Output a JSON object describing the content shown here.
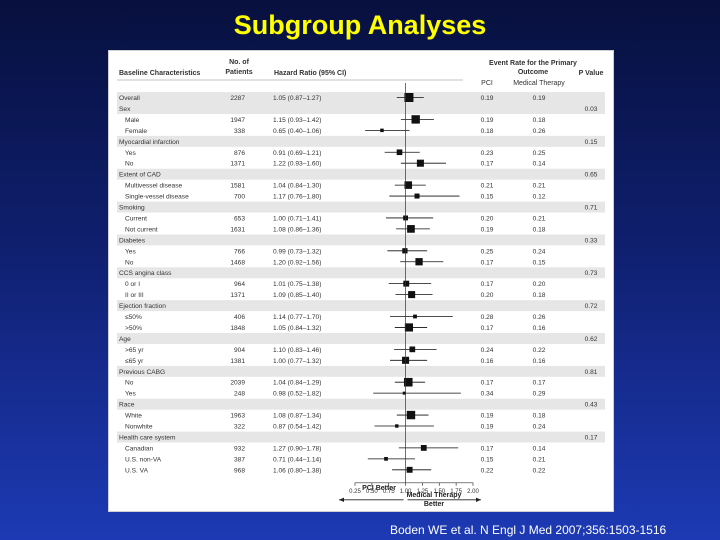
{
  "slide": {
    "title": "Subgroup Analyses",
    "citation": "Boden WE et al. N Engl J Med 2007;356:1503-1516"
  },
  "headers": {
    "baseline": "Baseline Characteristics",
    "patients": [
      "No. of",
      "Patients"
    ],
    "hazard": "Hazard Ratio (95% CI)",
    "event_rate": [
      "Event Rate for the Primary",
      "Outcome"
    ],
    "pci": "PCI",
    "medical": "Medical Therapy",
    "pvalue": "P Value"
  },
  "axis": {
    "ticks": [
      "0.25",
      "0.50",
      "0.75",
      "1.00",
      "1.25",
      "1.50",
      "1.75",
      "2.00"
    ],
    "left_label": "PCI Better",
    "right_label": [
      "Medical Therapy",
      "Better"
    ]
  },
  "chart_data": {
    "type": "forest",
    "xlim": [
      0.25,
      2.0
    ],
    "reference_line": 1.0,
    "rows": [
      {
        "label": "Overall",
        "indent": false,
        "n": "2287",
        "hr_text": "1.05 (0.87–1.27)",
        "hr": 1.05,
        "lo": 0.87,
        "hi": 1.27,
        "pci": "0.19",
        "med": "0.19",
        "p": "",
        "shaded": true
      },
      {
        "label": "Sex",
        "indent": false,
        "n": "",
        "hr_text": "",
        "hr": null,
        "lo": null,
        "hi": null,
        "pci": "",
        "med": "",
        "p": "0.03",
        "shaded": true
      },
      {
        "label": "Male",
        "indent": true,
        "n": "1947",
        "hr_text": "1.15 (0.93–1.42)",
        "hr": 1.15,
        "lo": 0.93,
        "hi": 1.42,
        "pci": "0.19",
        "med": "0.18",
        "p": "",
        "shaded": false
      },
      {
        "label": "Female",
        "indent": true,
        "n": "338",
        "hr_text": "0.65 (0.40–1.06)",
        "hr": 0.65,
        "lo": 0.4,
        "hi": 1.06,
        "pci": "0.18",
        "med": "0.26",
        "p": "",
        "shaded": false
      },
      {
        "label": "Myocardial infarction",
        "indent": false,
        "n": "",
        "hr_text": "",
        "hr": null,
        "lo": null,
        "hi": null,
        "pci": "",
        "med": "",
        "p": "0.15",
        "shaded": true
      },
      {
        "label": "Yes",
        "indent": true,
        "n": "876",
        "hr_text": "0.91 (0.69–1.21)",
        "hr": 0.91,
        "lo": 0.69,
        "hi": 1.21,
        "pci": "0.23",
        "med": "0.25",
        "p": "",
        "shaded": false
      },
      {
        "label": "No",
        "indent": true,
        "n": "1371",
        "hr_text": "1.22 (0.93–1.60)",
        "hr": 1.22,
        "lo": 0.93,
        "hi": 1.6,
        "pci": "0.17",
        "med": "0.14",
        "p": "",
        "shaded": false
      },
      {
        "label": "Extent of CAD",
        "indent": false,
        "n": "",
        "hr_text": "",
        "hr": null,
        "lo": null,
        "hi": null,
        "pci": "",
        "med": "",
        "p": "0.65",
        "shaded": true
      },
      {
        "label": "Multivessel disease",
        "indent": true,
        "n": "1581",
        "hr_text": "1.04 (0.84–1.30)",
        "hr": 1.04,
        "lo": 0.84,
        "hi": 1.3,
        "pci": "0.21",
        "med": "0.21",
        "p": "",
        "shaded": false
      },
      {
        "label": "Single-vessel disease",
        "indent": true,
        "n": "700",
        "hr_text": "1.17 (0.76–1.80)",
        "hr": 1.17,
        "lo": 0.76,
        "hi": 1.8,
        "pci": "0.15",
        "med": "0.12",
        "p": "",
        "shaded": false
      },
      {
        "label": "Smoking",
        "indent": false,
        "n": "",
        "hr_text": "",
        "hr": null,
        "lo": null,
        "hi": null,
        "pci": "",
        "med": "",
        "p": "0.71",
        "shaded": true
      },
      {
        "label": "Current",
        "indent": true,
        "n": "653",
        "hr_text": "1.00 (0.71–1.41)",
        "hr": 1.0,
        "lo": 0.71,
        "hi": 1.41,
        "pci": "0.20",
        "med": "0.21",
        "p": "",
        "shaded": false
      },
      {
        "label": "Not current",
        "indent": true,
        "n": "1631",
        "hr_text": "1.08 (0.86–1.36)",
        "hr": 1.08,
        "lo": 0.86,
        "hi": 1.36,
        "pci": "0.19",
        "med": "0.18",
        "p": "",
        "shaded": false
      },
      {
        "label": "Diabetes",
        "indent": false,
        "n": "",
        "hr_text": "",
        "hr": null,
        "lo": null,
        "hi": null,
        "pci": "",
        "med": "",
        "p": "0.33",
        "shaded": true
      },
      {
        "label": "Yes",
        "indent": true,
        "n": "766",
        "hr_text": "0.99 (0.73–1.32)",
        "hr": 0.99,
        "lo": 0.73,
        "hi": 1.32,
        "pci": "0.25",
        "med": "0.24",
        "p": "",
        "shaded": false
      },
      {
        "label": "No",
        "indent": true,
        "n": "1468",
        "hr_text": "1.20 (0.92–1.56)",
        "hr": 1.2,
        "lo": 0.92,
        "hi": 1.56,
        "pci": "0.17",
        "med": "0.15",
        "p": "",
        "shaded": false
      },
      {
        "label": "CCS angina class",
        "indent": false,
        "n": "",
        "hr_text": "",
        "hr": null,
        "lo": null,
        "hi": null,
        "pci": "",
        "med": "",
        "p": "0.73",
        "shaded": true
      },
      {
        "label": "0 or I",
        "indent": true,
        "n": "964",
        "hr_text": "1.01 (0.75–1.38)",
        "hr": 1.01,
        "lo": 0.75,
        "hi": 1.38,
        "pci": "0.17",
        "med": "0.20",
        "p": "",
        "shaded": false
      },
      {
        "label": "II or III",
        "indent": true,
        "n": "1371",
        "hr_text": "1.09 (0.85–1.40)",
        "hr": 1.09,
        "lo": 0.85,
        "hi": 1.4,
        "pci": "0.20",
        "med": "0.18",
        "p": "",
        "shaded": false
      },
      {
        "label": "Ejection fraction",
        "indent": false,
        "n": "",
        "hr_text": "",
        "hr": null,
        "lo": null,
        "hi": null,
        "pci": "",
        "med": "",
        "p": "0.72",
        "shaded": true
      },
      {
        "label": "≤50%",
        "indent": true,
        "n": "406",
        "hr_text": "1.14 (0.77–1.70)",
        "hr": 1.14,
        "lo": 0.77,
        "hi": 1.7,
        "pci": "0.28",
        "med": "0.26",
        "p": "",
        "shaded": false
      },
      {
        "label": ">50%",
        "indent": true,
        "n": "1848",
        "hr_text": "1.05 (0.84–1.32)",
        "hr": 1.05,
        "lo": 0.84,
        "hi": 1.32,
        "pci": "0.17",
        "med": "0.16",
        "p": "",
        "shaded": false
      },
      {
        "label": "Age",
        "indent": false,
        "n": "",
        "hr_text": "",
        "hr": null,
        "lo": null,
        "hi": null,
        "pci": "",
        "med": "",
        "p": "0.62",
        "shaded": true
      },
      {
        "label": ">65 yr",
        "indent": true,
        "n": "904",
        "hr_text": "1.10 (0.83–1.46)",
        "hr": 1.1,
        "lo": 0.83,
        "hi": 1.46,
        "pci": "0.24",
        "med": "0.22",
        "p": "",
        "shaded": false
      },
      {
        "label": "≤65 yr",
        "indent": true,
        "n": "1381",
        "hr_text": "1.00 (0.77–1.32)",
        "hr": 1.0,
        "lo": 0.77,
        "hi": 1.32,
        "pci": "0.16",
        "med": "0.16",
        "p": "",
        "shaded": false
      },
      {
        "label": "Previous CABG",
        "indent": false,
        "n": "",
        "hr_text": "",
        "hr": null,
        "lo": null,
        "hi": null,
        "pci": "",
        "med": "",
        "p": "0.81",
        "shaded": true
      },
      {
        "label": "No",
        "indent": true,
        "n": "2039",
        "hr_text": "1.04 (0.84–1.29)",
        "hr": 1.04,
        "lo": 0.84,
        "hi": 1.29,
        "pci": "0.17",
        "med": "0.17",
        "p": "",
        "shaded": false
      },
      {
        "label": "Yes",
        "indent": true,
        "n": "248",
        "hr_text": "0.98 (0.52–1.82)",
        "hr": 0.98,
        "lo": 0.52,
        "hi": 1.82,
        "pci": "0.34",
        "med": "0.29",
        "p": "",
        "shaded": false
      },
      {
        "label": "Race",
        "indent": false,
        "n": "",
        "hr_text": "",
        "hr": null,
        "lo": null,
        "hi": null,
        "pci": "",
        "med": "",
        "p": "0.43",
        "shaded": true
      },
      {
        "label": "White",
        "indent": true,
        "n": "1963",
        "hr_text": "1.08 (0.87–1.34)",
        "hr": 1.08,
        "lo": 0.87,
        "hi": 1.34,
        "pci": "0.19",
        "med": "0.18",
        "p": "",
        "shaded": false
      },
      {
        "label": "Nonwhite",
        "indent": true,
        "n": "322",
        "hr_text": "0.87 (0.54–1.42)",
        "hr": 0.87,
        "lo": 0.54,
        "hi": 1.42,
        "pci": "0.19",
        "med": "0.24",
        "p": "",
        "shaded": false
      },
      {
        "label": "Health care system",
        "indent": false,
        "n": "",
        "hr_text": "",
        "hr": null,
        "lo": null,
        "hi": null,
        "pci": "",
        "med": "",
        "p": "0.17",
        "shaded": true
      },
      {
        "label": "Canadian",
        "indent": true,
        "n": "932",
        "hr_text": "1.27 (0.90–1.78)",
        "hr": 1.27,
        "lo": 0.9,
        "hi": 1.78,
        "pci": "0.17",
        "med": "0.14",
        "p": "",
        "shaded": false
      },
      {
        "label": "U.S. non-VA",
        "indent": true,
        "n": "387",
        "hr_text": "0.71 (0.44–1.14)",
        "hr": 0.71,
        "lo": 0.44,
        "hi": 1.14,
        "pci": "0.15",
        "med": "0.21",
        "p": "",
        "shaded": false
      },
      {
        "label": "U.S. VA",
        "indent": true,
        "n": "968",
        "hr_text": "1.06 (0.80–1.38)",
        "hr": 1.06,
        "lo": 0.8,
        "hi": 1.38,
        "pci": "0.22",
        "med": "0.22",
        "p": "",
        "shaded": false
      }
    ]
  },
  "colors": {
    "title": "#ffff00",
    "shade": "#e6e6e6",
    "text": "#333333",
    "marker": "#111111"
  }
}
